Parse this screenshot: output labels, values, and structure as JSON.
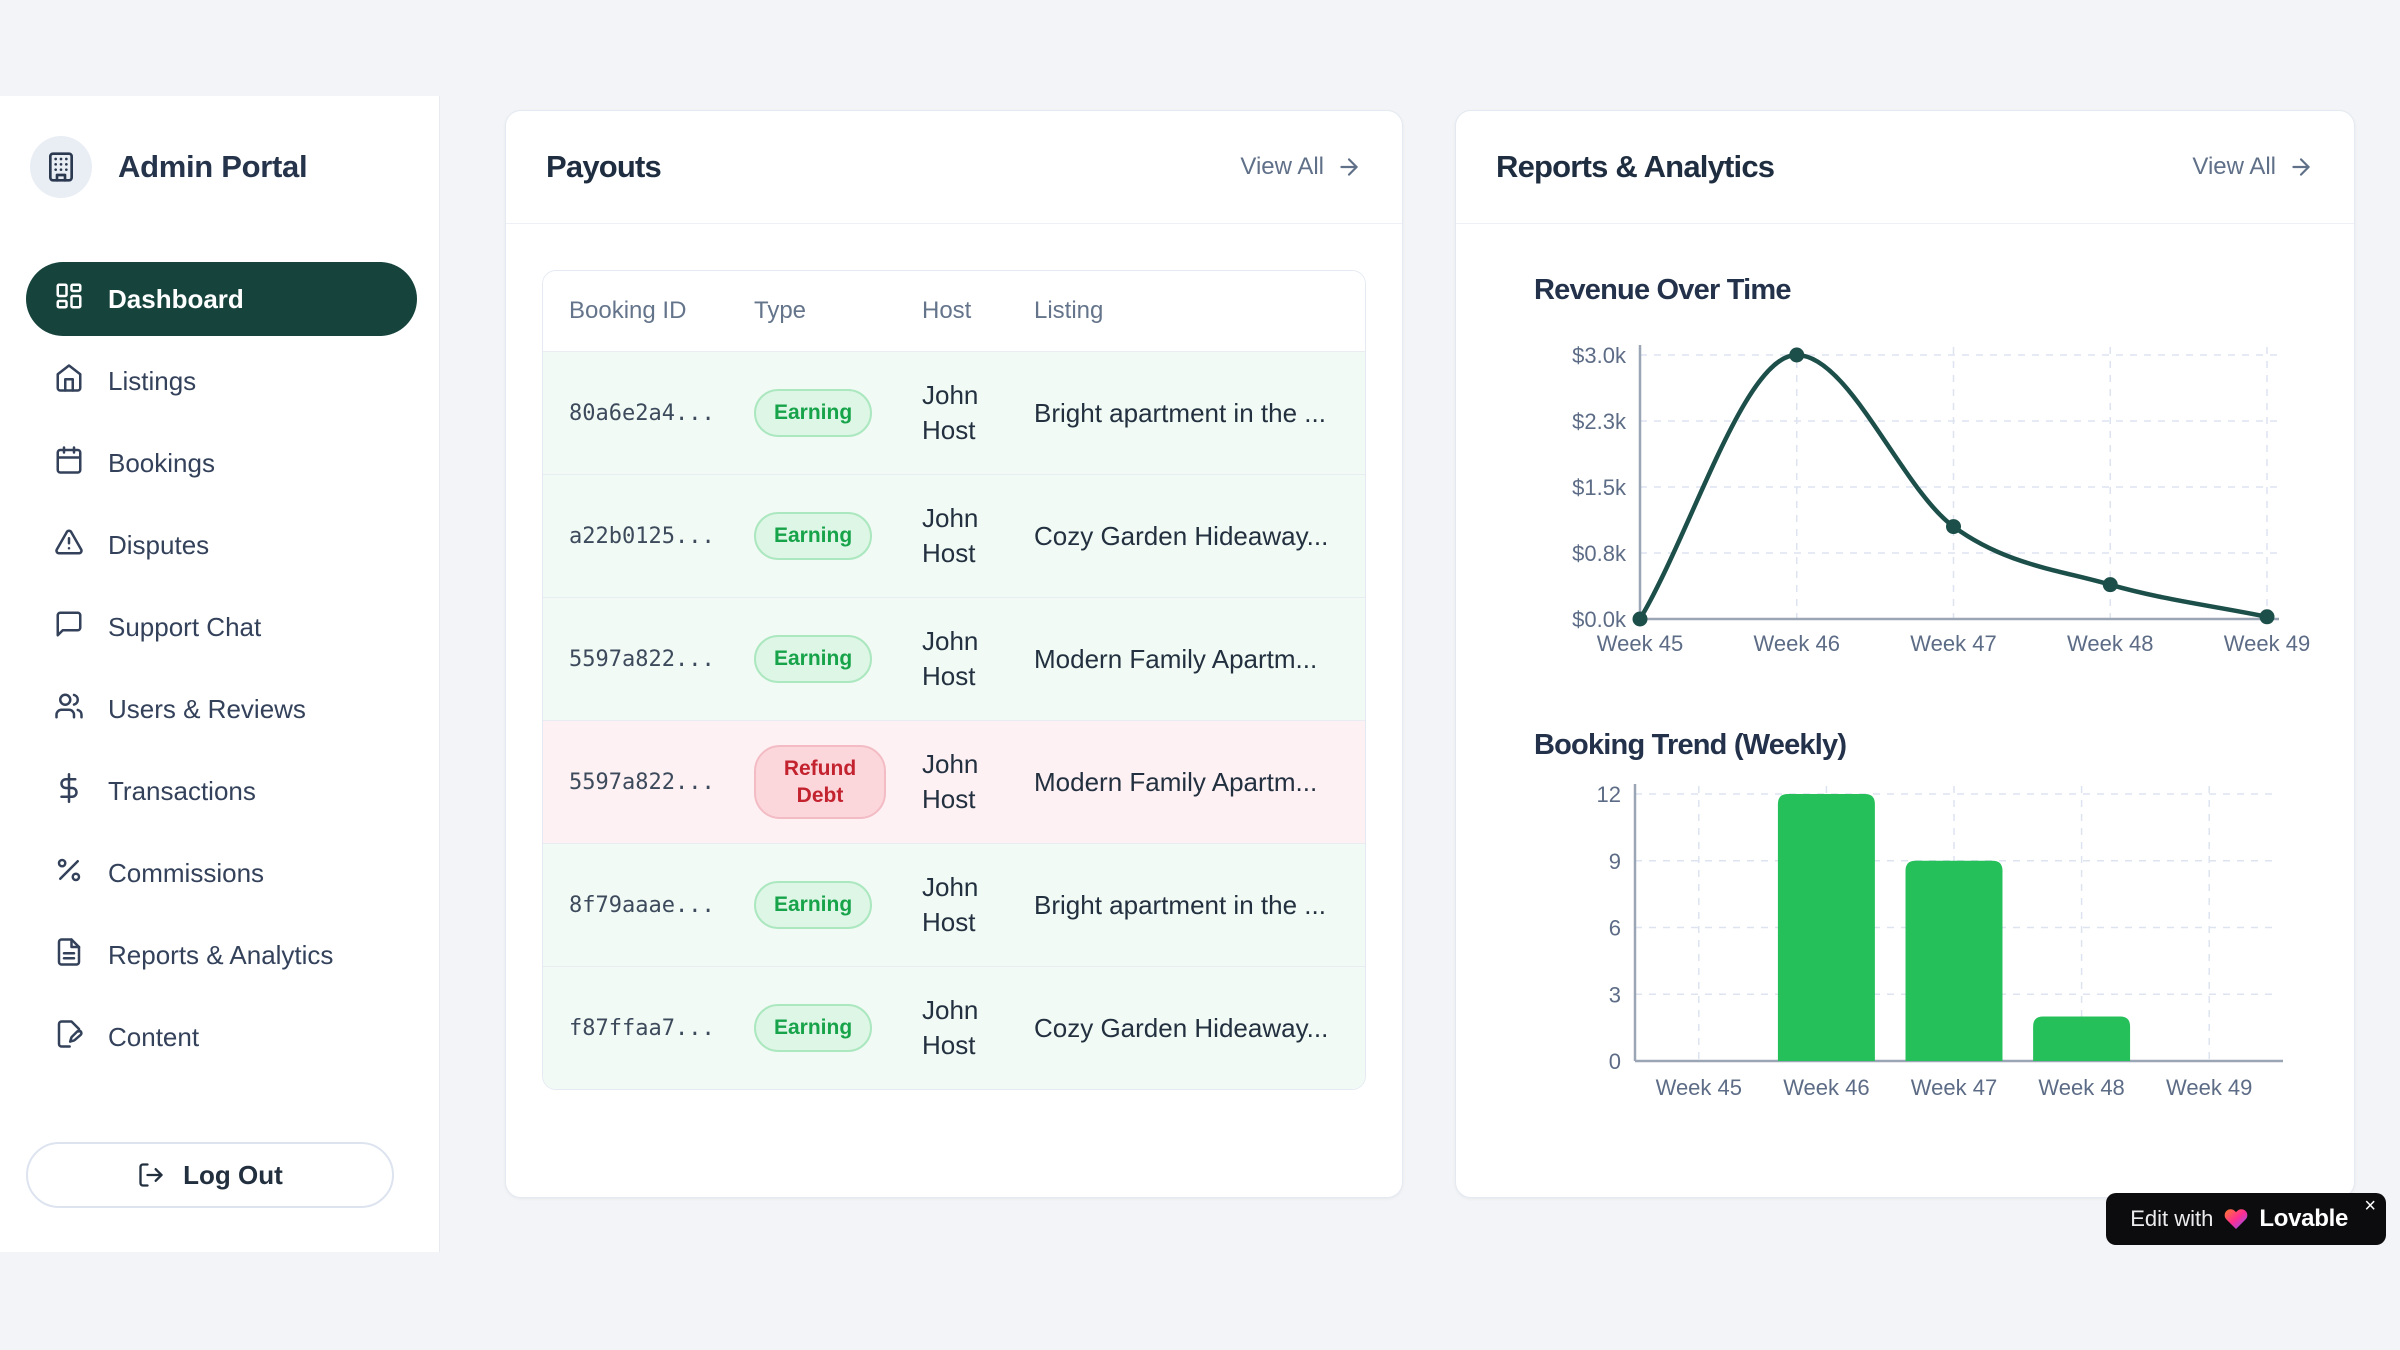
{
  "app": {
    "title": "Admin Portal"
  },
  "sidebar": {
    "items": [
      {
        "label": "Dashboard",
        "icon": "layout-dashboard",
        "state": "active"
      },
      {
        "label": "Listings",
        "icon": "home",
        "state": ""
      },
      {
        "label": "Bookings",
        "icon": "calendar",
        "state": ""
      },
      {
        "label": "Disputes",
        "icon": "alert-triangle",
        "state": ""
      },
      {
        "label": "Support Chat",
        "icon": "message-square",
        "state": ""
      },
      {
        "label": "Users & Reviews",
        "icon": "users",
        "state": ""
      },
      {
        "label": "Transactions",
        "icon": "dollar-sign",
        "state": ""
      },
      {
        "label": "Commissions",
        "icon": "percent",
        "state": ""
      },
      {
        "label": "Reports & Analytics",
        "icon": "file-text",
        "state": ""
      },
      {
        "label": "Content",
        "icon": "file-pen",
        "state": ""
      }
    ],
    "logout_label": "Log Out"
  },
  "payouts": {
    "title": "Payouts",
    "view_all": "View All",
    "columns": [
      "Booking ID",
      "Type",
      "Host",
      "Listing"
    ],
    "rows": [
      {
        "booking_id": "80a6e2a4...",
        "type": "Earning",
        "variant": "earning",
        "host": "John Host",
        "listing": "Bright apartment in the ..."
      },
      {
        "booking_id": "a22b0125...",
        "type": "Earning",
        "variant": "earning",
        "host": "John Host",
        "listing": "Cozy Garden Hideaway..."
      },
      {
        "booking_id": "5597a822...",
        "type": "Earning",
        "variant": "earning",
        "host": "John Host",
        "listing": "Modern Family Apartm..."
      },
      {
        "booking_id": "5597a822...",
        "type": "Refund Debt",
        "variant": "refund",
        "host": "John Host",
        "listing": "Modern Family Apartm..."
      },
      {
        "booking_id": "8f79aaae...",
        "type": "Earning",
        "variant": "earning",
        "host": "John Host",
        "listing": "Bright apartment in the ..."
      },
      {
        "booking_id": "f87ffaa7...",
        "type": "Earning",
        "variant": "earning",
        "host": "John Host",
        "listing": "Cozy Garden Hideaway..."
      }
    ]
  },
  "reports": {
    "title": "Reports & Analytics",
    "view_all": "View All"
  },
  "chart_data": [
    {
      "type": "line",
      "title": "Revenue Over Time",
      "x": [
        "Week 45",
        "Week 46",
        "Week 47",
        "Week 48",
        "Week 49"
      ],
      "values": [
        0,
        3000,
        1050,
        390,
        25
      ],
      "y_tick_values": [
        0,
        750,
        1500,
        2250,
        3000
      ],
      "y_tick_labels": [
        "$0.0k",
        "$0.8k",
        "$1.5k",
        "$2.3k",
        "$3.0k"
      ],
      "ylim": [
        0,
        3000
      ],
      "line_color": "#1d4f4a",
      "grid": true,
      "legend": false
    },
    {
      "type": "bar",
      "title": "Booking Trend (Weekly)",
      "categories": [
        "Week 45",
        "Week 46",
        "Week 47",
        "Week 48",
        "Week 49"
      ],
      "values": [
        0,
        12,
        9,
        2,
        0
      ],
      "y_tick_values": [
        0,
        3,
        6,
        9,
        12
      ],
      "ylim": [
        0,
        12
      ],
      "bar_color": "#25c05a",
      "grid": true,
      "legend": false
    }
  ],
  "lovable": {
    "prefix": "Edit with",
    "brand": "Lovable",
    "close": "×"
  },
  "colors": {
    "background": "#f2f4f7",
    "sidebar_active": "#16433c",
    "earning_green": "#17a34a",
    "refund_red": "#c3232f",
    "line_teal": "#1d4f4a",
    "bar_green": "#25c05a"
  }
}
